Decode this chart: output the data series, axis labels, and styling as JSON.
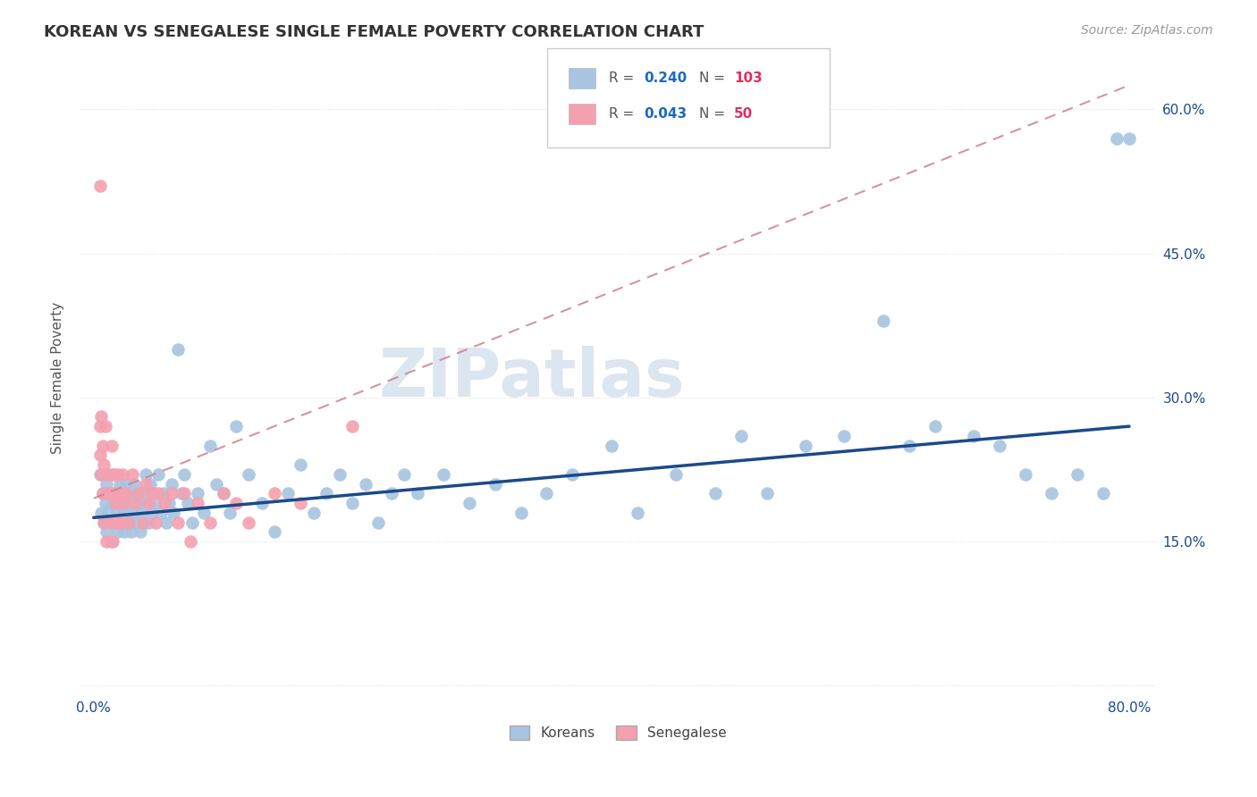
{
  "title": "KOREAN VS SENEGALESE SINGLE FEMALE POVERTY CORRELATION CHART",
  "source": "Source: ZipAtlas.com",
  "ylabel": "Single Female Poverty",
  "xlim": [
    -0.01,
    0.82
  ],
  "ylim": [
    -0.01,
    0.65
  ],
  "yticks": [
    0.0,
    0.15,
    0.3,
    0.45,
    0.6
  ],
  "ytick_labels_right": [
    "",
    "15.0%",
    "30.0%",
    "45.0%",
    "60.0%"
  ],
  "xticks": [
    0.0,
    0.1,
    0.2,
    0.3,
    0.4,
    0.5,
    0.6,
    0.7,
    0.8
  ],
  "xtick_labels": [
    "0.0%",
    "",
    "",
    "",
    "",
    "",
    "",
    "",
    "80.0%"
  ],
  "korean_R": 0.24,
  "korean_N": 103,
  "senegalese_R": 0.043,
  "senegalese_N": 50,
  "korean_color": "#a8c4e0",
  "senegalese_color": "#f4a0b0",
  "korean_line_color": "#1a4a8a",
  "senegalese_line_color": "#d08090",
  "watermark": "ZIPatlas",
  "watermark_color": "#dce6f0",
  "title_fontsize": 13,
  "source_fontsize": 10,
  "legend_r_color": "#1a6abf",
  "legend_n_color": "#e03060",
  "background_color": "#ffffff",
  "grid_color": "#d8e4ee",
  "axis_label_color": "#1a4a8a",
  "korean_x": [
    0.005,
    0.006,
    0.007,
    0.008,
    0.009,
    0.01,
    0.01,
    0.011,
    0.012,
    0.013,
    0.014,
    0.015,
    0.015,
    0.016,
    0.017,
    0.018,
    0.019,
    0.02,
    0.02,
    0.021,
    0.022,
    0.023,
    0.024,
    0.025,
    0.025,
    0.026,
    0.027,
    0.028,
    0.029,
    0.03,
    0.031,
    0.032,
    0.033,
    0.034,
    0.035,
    0.036,
    0.037,
    0.038,
    0.04,
    0.041,
    0.042,
    0.044,
    0.045,
    0.046,
    0.048,
    0.05,
    0.052,
    0.054,
    0.056,
    0.058,
    0.06,
    0.062,
    0.065,
    0.068,
    0.07,
    0.073,
    0.076,
    0.08,
    0.085,
    0.09,
    0.095,
    0.1,
    0.105,
    0.11,
    0.12,
    0.13,
    0.14,
    0.15,
    0.16,
    0.17,
    0.18,
    0.19,
    0.2,
    0.21,
    0.22,
    0.23,
    0.24,
    0.25,
    0.27,
    0.29,
    0.31,
    0.33,
    0.35,
    0.37,
    0.4,
    0.42,
    0.45,
    0.48,
    0.5,
    0.52,
    0.55,
    0.58,
    0.61,
    0.63,
    0.65,
    0.68,
    0.7,
    0.72,
    0.74,
    0.76,
    0.78,
    0.79,
    0.8
  ],
  "korean_y": [
    0.22,
    0.18,
    0.2,
    0.17,
    0.19,
    0.21,
    0.16,
    0.18,
    0.2,
    0.17,
    0.15,
    0.19,
    0.22,
    0.17,
    0.2,
    0.18,
    0.16,
    0.21,
    0.19,
    0.17,
    0.2,
    0.18,
    0.16,
    0.21,
    0.19,
    0.18,
    0.17,
    0.2,
    0.16,
    0.19,
    0.21,
    0.18,
    0.17,
    0.2,
    0.19,
    0.16,
    0.18,
    0.2,
    0.22,
    0.19,
    0.17,
    0.21,
    0.18,
    0.2,
    0.19,
    0.22,
    0.18,
    0.2,
    0.17,
    0.19,
    0.21,
    0.18,
    0.35,
    0.2,
    0.22,
    0.19,
    0.17,
    0.2,
    0.18,
    0.25,
    0.21,
    0.2,
    0.18,
    0.27,
    0.22,
    0.19,
    0.16,
    0.2,
    0.23,
    0.18,
    0.2,
    0.22,
    0.19,
    0.21,
    0.17,
    0.2,
    0.22,
    0.2,
    0.22,
    0.19,
    0.21,
    0.18,
    0.2,
    0.22,
    0.25,
    0.18,
    0.22,
    0.2,
    0.26,
    0.2,
    0.25,
    0.26,
    0.38,
    0.25,
    0.27,
    0.26,
    0.25,
    0.22,
    0.2,
    0.22,
    0.2,
    0.57,
    0.57
  ],
  "senegalese_x": [
    0.005,
    0.005,
    0.005,
    0.006,
    0.006,
    0.007,
    0.007,
    0.008,
    0.008,
    0.009,
    0.01,
    0.01,
    0.011,
    0.012,
    0.013,
    0.014,
    0.015,
    0.015,
    0.016,
    0.017,
    0.018,
    0.019,
    0.02,
    0.021,
    0.022,
    0.023,
    0.025,
    0.027,
    0.03,
    0.032,
    0.035,
    0.038,
    0.04,
    0.042,
    0.045,
    0.048,
    0.05,
    0.055,
    0.06,
    0.065,
    0.07,
    0.075,
    0.08,
    0.09,
    0.1,
    0.11,
    0.12,
    0.14,
    0.16,
    0.2
  ],
  "senegalese_y": [
    0.52,
    0.27,
    0.24,
    0.28,
    0.22,
    0.25,
    0.2,
    0.23,
    0.17,
    0.27,
    0.22,
    0.15,
    0.2,
    0.22,
    0.17,
    0.25,
    0.2,
    0.15,
    0.22,
    0.19,
    0.17,
    0.22,
    0.2,
    0.17,
    0.22,
    0.19,
    0.2,
    0.17,
    0.22,
    0.19,
    0.2,
    0.17,
    0.21,
    0.19,
    0.2,
    0.17,
    0.2,
    0.19,
    0.2,
    0.17,
    0.2,
    0.15,
    0.19,
    0.17,
    0.2,
    0.19,
    0.17,
    0.2,
    0.19,
    0.27
  ],
  "korean_line_x0": 0.0,
  "korean_line_x1": 0.8,
  "korean_line_y0": 0.175,
  "korean_line_y1": 0.27,
  "senegalese_line_x0": 0.0,
  "senegalese_line_x1": 0.8,
  "senegalese_line_y0": 0.195,
  "senegalese_line_y1": 0.625
}
